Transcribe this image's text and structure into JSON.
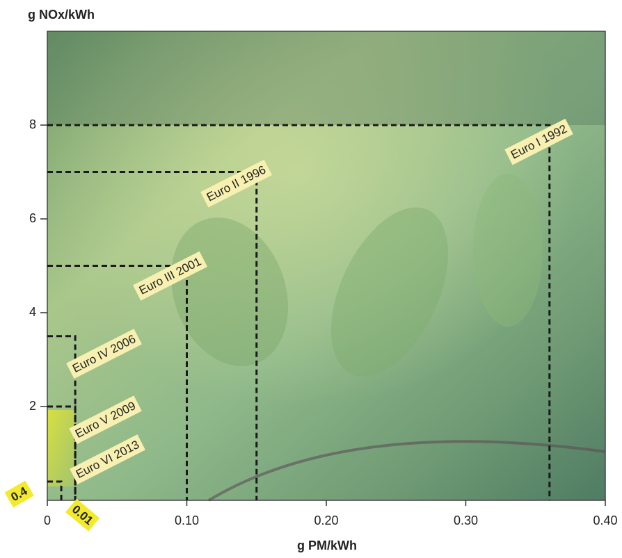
{
  "chart_data": {
    "type": "limit-boxes",
    "y_label": "g NOx/kWh",
    "x_label": "g PM/kWh",
    "categories": [
      "Euro I 1992",
      "Euro II 1996",
      "Euro III 2001",
      "Euro IV 2006",
      "Euro V 2009",
      "Euro VI 2013"
    ],
    "pm_limits": [
      0.36,
      0.15,
      0.1,
      0.02,
      0.02,
      0.01
    ],
    "nox_limits": [
      8,
      7,
      5,
      3.5,
      2,
      0.4
    ],
    "annotations": [
      "0.4",
      "0.01"
    ],
    "xlim": [
      0,
      0.4
    ],
    "ylim": [
      0,
      10
    ],
    "xticks": [
      0,
      {
        "value": 0.1,
        "label": "0.10"
      },
      {
        "value": 0.2,
        "label": "0.20"
      },
      {
        "value": 0.3,
        "label": "0.30"
      },
      {
        "value": 0.4,
        "label": "0.40"
      }
    ],
    "yticks": [
      2,
      4,
      6,
      8
    ],
    "line_color": "#1a1a1a",
    "label_color": "#f7f0b0"
  }
}
